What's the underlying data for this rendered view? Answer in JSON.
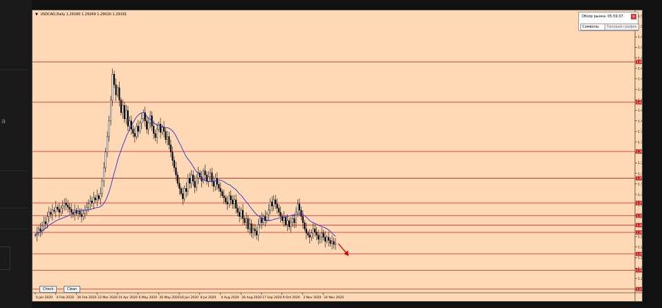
{
  "background_fragment": "a",
  "chart": {
    "header": "USDCAD,Daily  1.29180 1.29269 1.29020 1.29191",
    "buttons": {
      "check": "Check",
      "clean": "Clean"
    }
  },
  "market_panel": {
    "title": "Обзор рынка: 05:59:37",
    "close_label": "x",
    "tabs": [
      "Символы",
      "Тиковый график"
    ]
  },
  "chart_data": {
    "type": "candlestick",
    "symbol": "USDCAD",
    "timeframe": "Daily",
    "ohlc": {
      "open": 1.2918,
      "high": 1.29269,
      "low": 1.2902,
      "close": 1.29191
    },
    "ylim": [
      1.2445,
      1.5152
    ],
    "y_ticks": [
      1.5112,
      1.5012,
      1.4911,
      1.4809,
      1.4707,
      1.4606,
      1.4506,
      1.4404,
      1.4305,
      1.4203,
      1.4101,
      1.3999,
      1.3898,
      1.3797,
      1.3696,
      1.3594,
      1.3493,
      1.3392,
      1.3291,
      1.3189,
      1.3088,
      1.2986,
      1.2886,
      1.2784,
      1.2683,
      1.2583,
      1.2481
    ],
    "x_ticks": [
      "6 Jan 2020",
      "6 Feb 2020",
      "26 Feb 2020",
      "23 Mar 2020",
      "14 Apr 2020",
      "6 May 2020",
      "26 May 2020",
      "16 Jun 2020",
      "8 Jul 2020",
      "4 Aug 2020",
      "26 Aug 2020",
      "17 Sep 2020",
      "9 Oct 2020",
      "2 Nov 2020",
      "24 Nov 2020"
    ],
    "horizontal_levels": [
      {
        "value": 1.46692,
        "label": "1.46692"
      },
      {
        "value": 1.428,
        "label": "1.42800"
      },
      {
        "value": 1.3806,
        "label": "1.38060"
      },
      {
        "value": 1.3548,
        "label": "1.35480"
      },
      {
        "value": 1.3311,
        "label": "1.33110"
      },
      {
        "value": 1.3187,
        "label": "1.31870"
      },
      {
        "value": 1.3097,
        "label": "1.30970"
      },
      {
        "value": 1.3026,
        "label": "1.30260"
      },
      {
        "value": 1.2819,
        "label": "1.28190"
      },
      {
        "value": 1.2661,
        "label": "1.26610"
      },
      {
        "value": 1.248,
        "label": "1.24800"
      }
    ],
    "close_path": [
      1.3,
      1.302,
      1.306,
      1.304,
      1.309,
      1.313,
      1.311,
      1.318,
      1.322,
      1.32,
      1.324,
      1.323,
      1.327,
      1.325,
      1.322,
      1.326,
      1.328,
      1.331,
      1.329,
      1.327,
      1.325,
      1.322,
      1.32,
      1.324,
      1.321,
      1.323,
      1.32,
      1.318,
      1.321,
      1.324,
      1.327,
      1.33,
      1.333,
      1.331,
      1.336,
      1.334,
      1.338,
      1.335,
      1.34,
      1.352,
      1.365,
      1.38,
      1.395,
      1.41,
      1.43,
      1.455,
      1.445,
      1.435,
      1.442,
      1.43,
      1.418,
      1.425,
      1.412,
      1.42,
      1.405,
      1.41,
      1.402,
      1.398,
      1.395,
      1.405,
      1.4,
      1.408,
      1.412,
      1.418,
      1.41,
      1.402,
      1.408,
      1.415,
      1.405,
      1.398,
      1.394,
      1.402,
      1.407,
      1.399,
      1.404,
      1.4,
      1.392,
      1.395,
      1.387,
      1.38,
      1.372,
      1.365,
      1.358,
      1.35,
      1.345,
      1.34,
      1.335,
      1.345,
      1.342,
      1.355,
      1.35,
      1.358,
      1.352,
      1.346,
      1.355,
      1.36,
      1.356,
      1.352,
      1.362,
      1.358,
      1.352,
      1.356,
      1.36,
      1.352,
      1.347,
      1.355,
      1.349,
      1.345,
      1.342,
      1.338,
      1.336,
      1.332,
      1.33,
      1.338,
      1.334,
      1.33,
      1.334,
      1.326,
      1.322,
      1.318,
      1.324,
      1.316,
      1.312,
      1.316,
      1.306,
      1.311,
      1.302,
      1.306,
      1.304,
      1.3,
      1.31,
      1.316,
      1.312,
      1.318,
      1.314,
      1.32,
      1.324,
      1.332,
      1.328,
      1.334,
      1.33,
      1.326,
      1.322,
      1.318,
      1.314,
      1.317,
      1.31,
      1.314,
      1.308,
      1.312,
      1.316,
      1.312,
      1.322,
      1.33,
      1.324,
      1.318,
      1.312,
      1.306,
      1.302,
      1.3,
      1.298,
      1.302,
      1.306,
      1.303,
      1.3,
      1.296,
      1.298,
      1.302,
      1.298,
      1.294,
      1.298,
      1.295,
      1.292,
      1.294,
      1.291,
      1.29191
    ]
  }
}
